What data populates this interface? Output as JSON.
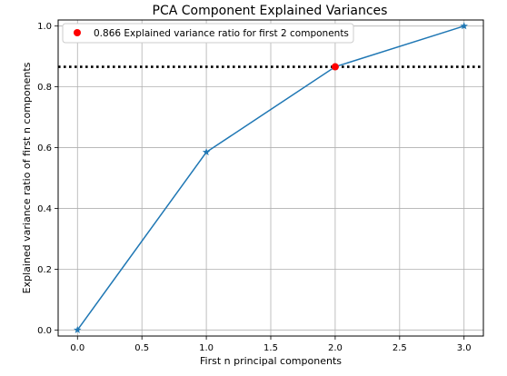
{
  "chart_data": {
    "type": "line",
    "title": "PCA Component Explained Variances",
    "xlabel": "First n principal components",
    "ylabel": "Explained variance ratio of first n components",
    "xlim": [
      -0.15,
      3.15
    ],
    "ylim": [
      -0.02,
      1.02
    ],
    "xticks": [
      0.0,
      0.5,
      1.0,
      1.5,
      2.0,
      2.5,
      3.0
    ],
    "xtick_labels": [
      "0.0",
      "0.5",
      "1.0",
      "1.5",
      "2.0",
      "2.5",
      "3.0"
    ],
    "yticks": [
      0.0,
      0.2,
      0.4,
      0.6,
      0.8,
      1.0
    ],
    "ytick_labels": [
      "0.0",
      "0.2",
      "0.4",
      "0.6",
      "0.8",
      "1.0"
    ],
    "grid": true,
    "legend_position": "top-left",
    "series": [
      {
        "x": [
          0,
          1,
          2,
          3
        ],
        "y": [
          0.0,
          0.585,
          0.866,
          1.0
        ],
        "color": "#1f77b4",
        "marker": "star"
      }
    ],
    "highlight": {
      "name": "0.866 Explained variance ratio for first 2 components",
      "x": 2,
      "y": 0.866,
      "color": "#ff0000"
    },
    "hline": {
      "y": 0.866,
      "style": "dotted",
      "color": "#000000"
    }
  }
}
